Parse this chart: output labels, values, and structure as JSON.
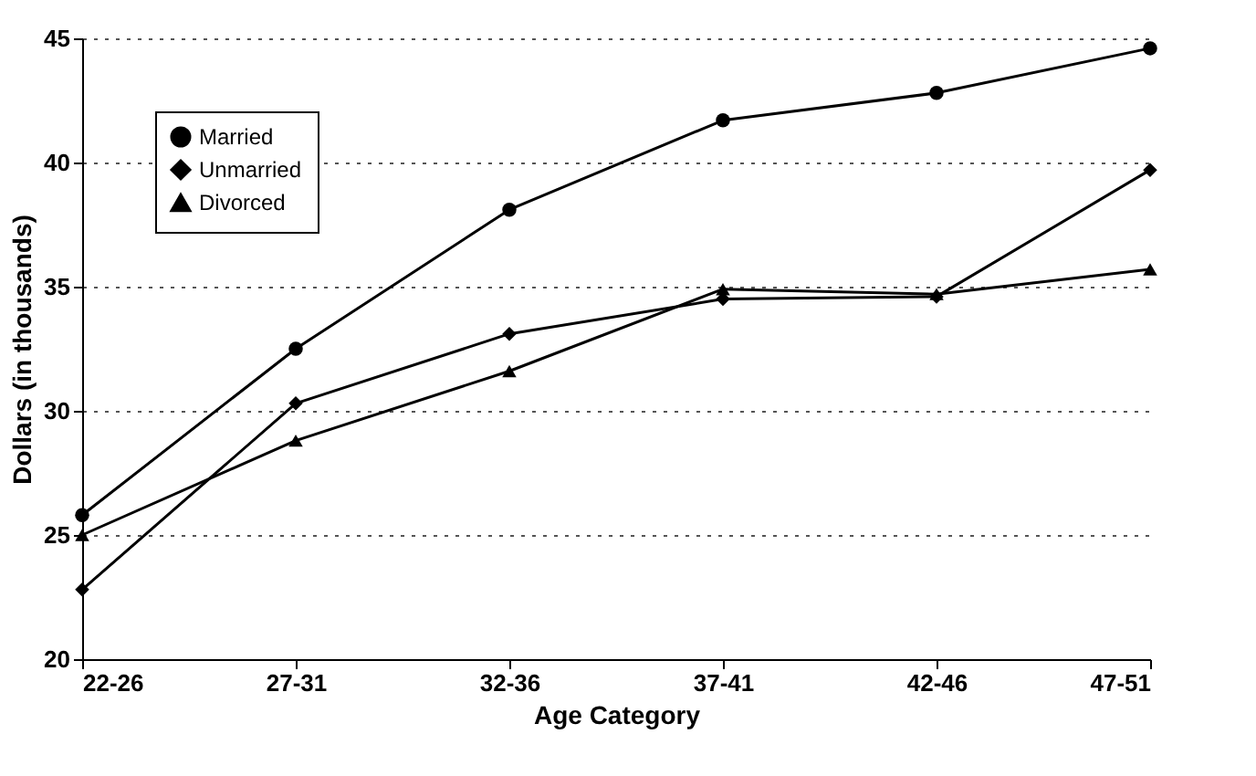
{
  "chart_data": {
    "type": "line",
    "xlabel": "Age Category",
    "ylabel": "Dollars (in thousands)",
    "categories": [
      "22-26",
      "27-31",
      "32-36",
      "37-41",
      "42-46",
      "47-51"
    ],
    "series": [
      {
        "name": "Married",
        "color": "#000000",
        "marker": "circle",
        "values": [
          25.8,
          32.5,
          38.1,
          41.7,
          42.8,
          44.6
        ]
      },
      {
        "name": "Unmarried",
        "color": "#000000",
        "marker": "diamond",
        "values": [
          22.8,
          30.3,
          33.1,
          34.5,
          34.6,
          39.7
        ]
      },
      {
        "name": "Divorced",
        "color": "#000000",
        "marker": "triangle",
        "values": [
          25.0,
          28.8,
          31.6,
          34.9,
          34.7,
          35.7
        ]
      }
    ],
    "ylim": [
      20,
      45
    ],
    "yticks": [
      20,
      25,
      30,
      35,
      40,
      45
    ],
    "grid": "y",
    "legend": "top left",
    "line_style": "solid"
  }
}
